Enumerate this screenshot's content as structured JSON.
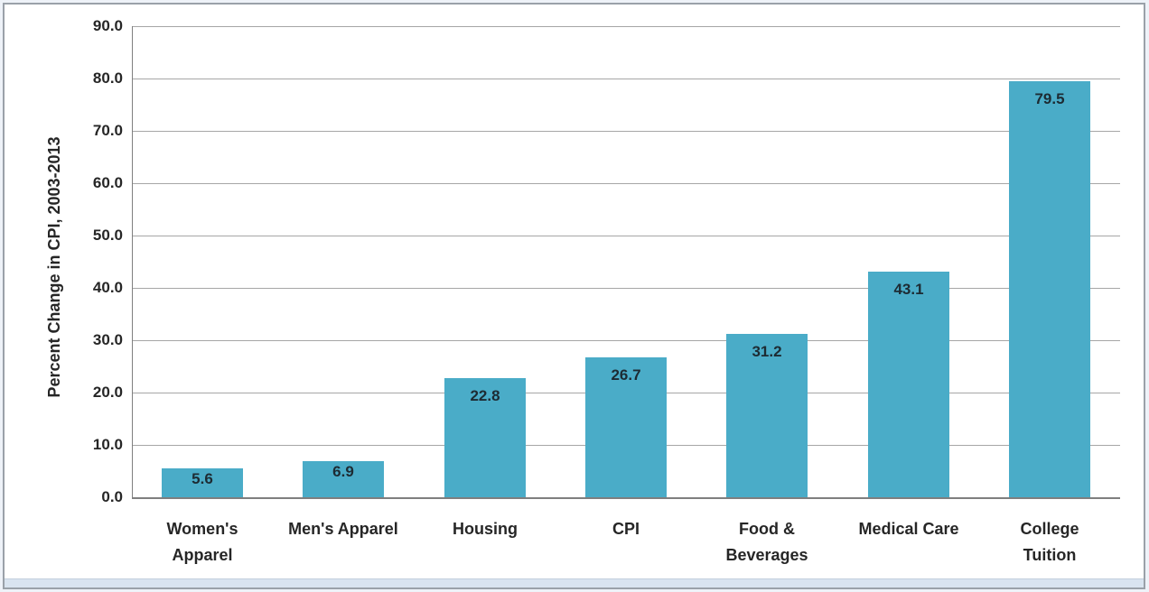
{
  "frame": {
    "page_background": "#eef2f8",
    "chart_background": "#ffffff",
    "border_color": "#9aa1a9",
    "bottom_strip_color": "#d9e4f0"
  },
  "chart_data": {
    "type": "bar",
    "title": "",
    "xlabel": "",
    "ylabel": "Percent Change in CPI, 2003-2013",
    "categories": [
      "Women's Apparel",
      "Men's Apparel",
      "Housing",
      "CPI",
      "Food & Beverages",
      "Medical Care",
      "College Tuition"
    ],
    "category_lines": [
      [
        "Women's",
        "Apparel"
      ],
      [
        "Men's Apparel"
      ],
      [
        "Housing"
      ],
      [
        "CPI"
      ],
      [
        "Food &",
        "Beverages"
      ],
      [
        "Medical Care"
      ],
      [
        "College",
        "Tuition"
      ]
    ],
    "values": [
      5.6,
      6.9,
      22.8,
      26.7,
      31.2,
      43.1,
      79.5
    ],
    "data_labels": [
      "5.6",
      "6.9",
      "22.8",
      "26.7",
      "31.2",
      "43.1",
      "79.5"
    ],
    "ylim": [
      0,
      90
    ],
    "ytick_step": 10,
    "ytick_labels": [
      "0.0",
      "10.0",
      "20.0",
      "30.0",
      "40.0",
      "50.0",
      "60.0",
      "70.0",
      "80.0",
      "90.0"
    ],
    "grid": true,
    "legend": "none",
    "bar_color": "#4aacc8",
    "gridline_color": "#a6a6a6",
    "axis_line_color": "#7f7f7f",
    "text_color": "#262626"
  }
}
